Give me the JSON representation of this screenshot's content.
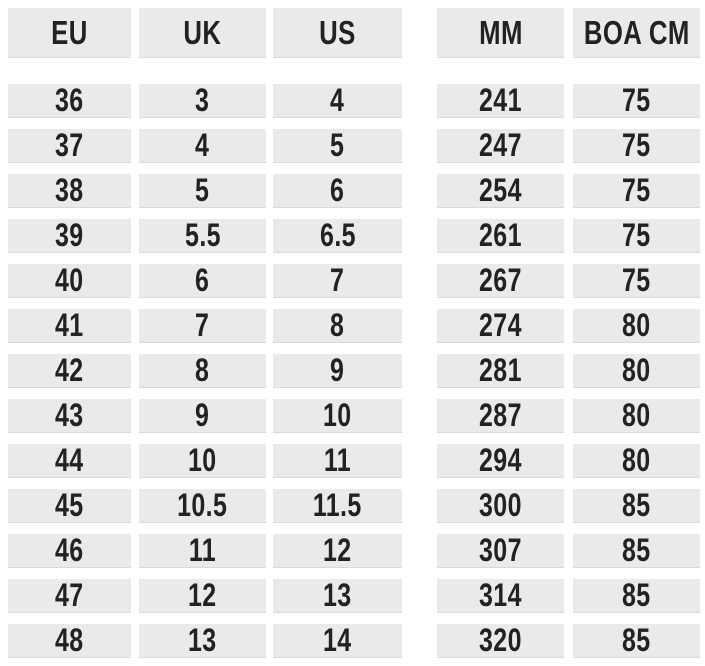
{
  "colors": {
    "page_bg": "#ffffff",
    "cell_bg": "#ebeae9",
    "text": "#242122"
  },
  "chart_data": {
    "type": "table",
    "columns": [
      "EU",
      "UK",
      "US",
      "MM",
      "BOA CM"
    ],
    "headers": {
      "eu": "EU",
      "uk": "UK",
      "us": "US",
      "mm": "MM",
      "boa": "BOA CM"
    },
    "layout": "two column groups: sizes (EU/UK/US) and measurements (MM/BOA CM), no grid lines, gray cells on white background",
    "rows": [
      {
        "eu": "36",
        "uk": "3",
        "us": "4",
        "mm": "241",
        "boa": "75"
      },
      {
        "eu": "37",
        "uk": "4",
        "us": "5",
        "mm": "247",
        "boa": "75"
      },
      {
        "eu": "38",
        "uk": "5",
        "us": "6",
        "mm": "254",
        "boa": "75"
      },
      {
        "eu": "39",
        "uk": "5.5",
        "us": "6.5",
        "mm": "261",
        "boa": "75"
      },
      {
        "eu": "40",
        "uk": "6",
        "us": "7",
        "mm": "267",
        "boa": "75"
      },
      {
        "eu": "41",
        "uk": "7",
        "us": "8",
        "mm": "274",
        "boa": "80"
      },
      {
        "eu": "42",
        "uk": "8",
        "us": "9",
        "mm": "281",
        "boa": "80"
      },
      {
        "eu": "43",
        "uk": "9",
        "us": "10",
        "mm": "287",
        "boa": "80"
      },
      {
        "eu": "44",
        "uk": "10",
        "us": "11",
        "mm": "294",
        "boa": "80"
      },
      {
        "eu": "45",
        "uk": "10.5",
        "us": "11.5",
        "mm": "300",
        "boa": "85"
      },
      {
        "eu": "46",
        "uk": "11",
        "us": "12",
        "mm": "307",
        "boa": "85"
      },
      {
        "eu": "47",
        "uk": "12",
        "us": "13",
        "mm": "314",
        "boa": "85"
      },
      {
        "eu": "48",
        "uk": "13",
        "us": "14",
        "mm": "320",
        "boa": "85"
      }
    ]
  }
}
